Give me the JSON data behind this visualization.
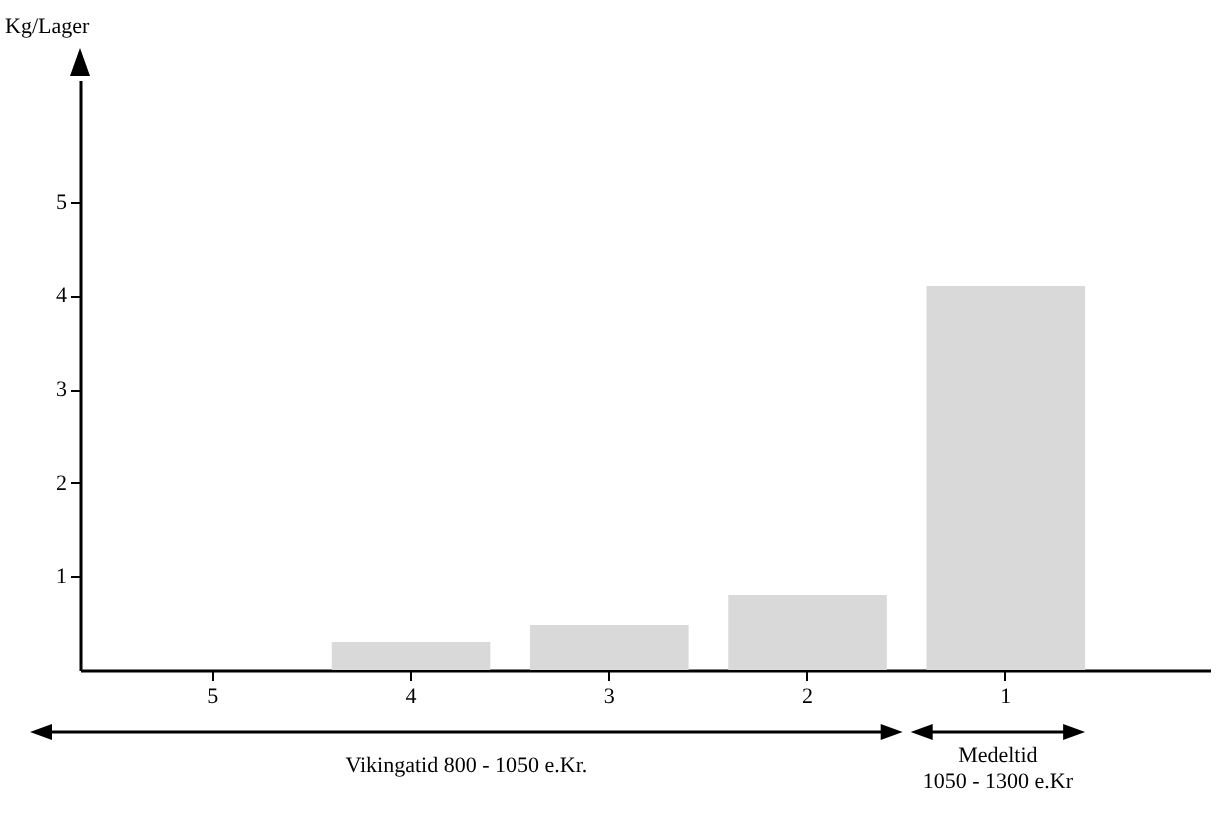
{
  "chart_data": {
    "type": "bar",
    "ylabel": "Kg/Lager",
    "categories": [
      "5",
      "4",
      "3",
      "2",
      "1"
    ],
    "values": [
      0,
      0.3,
      0.48,
      0.8,
      4.1
    ],
    "color": "#d9d9d9",
    "ylim": [
      0,
      6.3
    ],
    "yticks": [
      1,
      2,
      3,
      4,
      5
    ],
    "grid": false,
    "annotations": [
      "Vikingatid 800 - 1050 e.Kr.",
      "Medeltid\n1050 - 1300 e.Kr"
    ]
  }
}
